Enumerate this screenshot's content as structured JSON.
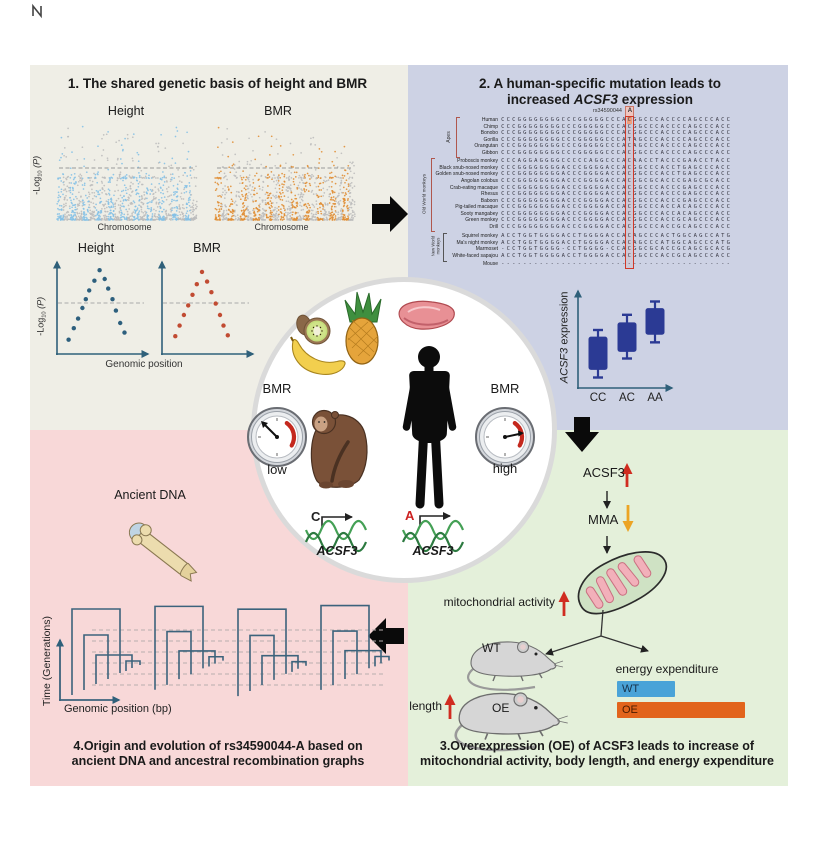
{
  "quadrant1": {
    "title": "1. The shared genetic basis of height and BMR",
    "manhattan": {
      "labels": [
        "Height",
        "BMR"
      ],
      "accent_colors": [
        "#85c1e5",
        "#e08e35"
      ],
      "alt_color": "#bcbcbc",
      "xlabel": "Chromosome",
      "ylabel": {
        "pre": "-Log",
        "sub": "10",
        "post": " (P)"
      },
      "threshold_rel": 0.52,
      "chromosome_count": 22
    },
    "locus": {
      "labels": [
        "Height",
        "BMR"
      ],
      "dot_colors": [
        "#2d5f7d",
        "#c14b32"
      ],
      "xlabel": "Genomic position",
      "ylabel": {
        "pre": "-Log",
        "sub": "10",
        "post": " (P)"
      },
      "threshold_rel": 0.55,
      "points": {
        "height": [
          [
            0.1,
            0.14
          ],
          [
            0.16,
            0.27
          ],
          [
            0.21,
            0.38
          ],
          [
            0.26,
            0.5
          ],
          [
            0.3,
            0.6
          ],
          [
            0.34,
            0.7
          ],
          [
            0.4,
            0.81
          ],
          [
            0.46,
            0.93
          ],
          [
            0.52,
            0.83
          ],
          [
            0.56,
            0.72
          ],
          [
            0.61,
            0.6
          ],
          [
            0.65,
            0.47
          ],
          [
            0.7,
            0.33
          ],
          [
            0.75,
            0.22
          ]
        ],
        "bmr": [
          [
            0.12,
            0.18
          ],
          [
            0.17,
            0.3
          ],
          [
            0.22,
            0.42
          ],
          [
            0.27,
            0.53
          ],
          [
            0.32,
            0.65
          ],
          [
            0.37,
            0.77
          ],
          [
            0.43,
            0.91
          ],
          [
            0.49,
            0.8
          ],
          [
            0.54,
            0.68
          ],
          [
            0.59,
            0.55
          ],
          [
            0.64,
            0.42
          ],
          [
            0.68,
            0.3
          ],
          [
            0.73,
            0.19
          ]
        ]
      }
    }
  },
  "quadrant2": {
    "title_line1": "2. A human-specific mutation leads to",
    "title_line2": {
      "pre": "increased ",
      "gene": "ACSF3",
      "post": " expression"
    },
    "alignment": {
      "snp_label": "rs34590044",
      "snp_allele": "A",
      "snp_index": 23,
      "groups": [
        {
          "name": "Apes",
          "start": 0,
          "end": 5,
          "color": "#b0574d"
        },
        {
          "name": "Old World monkeys",
          "start": 6,
          "end": 16,
          "color": "#b0574d"
        },
        {
          "name": "New World monkeys",
          "start": 17,
          "end": 20,
          "color": "#555555"
        }
      ],
      "rows": [
        {
          "species": "Human",
          "seq": "CCCGGGGGGGGCCCGGGGGCCCACGGCCCACCCCAGCCCACC",
          "hum": true
        },
        {
          "species": "Chimp",
          "seq": "CCCGGGGGGGGCCCGGGGGCCCACGGCCCACCCCAGCCCACC"
        },
        {
          "species": "Bonobo",
          "seq": "CCCGGGGGGGGCCCGGGGGCCCACGGCCCACCCCAGCCCACC"
        },
        {
          "species": "Gorilla",
          "seq": "CCCGGGGGGGGCCCGGGGGCCCATAGCCCACCCCAGCCCACC"
        },
        {
          "species": "Orangutan",
          "seq": "CCCGGGGGGGGCCCGGGGGCCCACAGCCCACCCCAGCCCACC"
        },
        {
          "species": "Gibbon",
          "seq": "CCCGGGGGGGGCCCGGGGGCCCACGGCCCACCCCAGCCCACC"
        },
        {
          "species": "Proboscis monkey",
          "seq": "CCCAGGAGGGGCCCCCAGGCCCACAACCTACCCGAACCTACC",
          "gap": 2
        },
        {
          "species": "Black snub-nosed monkey",
          "seq": "CCCGGGGGGGGACCCGGGGACCACGGCCCACCTGAGCCCACC"
        },
        {
          "species": "Golden snub-nosed monkey",
          "seq": "CCCGGGGGGGGACCCGGGGACCACGGCCCACCTGAGCCCACC"
        },
        {
          "species": "Angolan colobus",
          "seq": "CCCGGGGGGGGACCCGGGGACCACGGCGCACCCGAGCGCACC"
        },
        {
          "species": "Crab-eating macaque",
          "seq": "CCCGGGGGGGGACCCGGGGACCACGGCCCACCCGAGCCCACC"
        },
        {
          "species": "Rhesus",
          "seq": "CCCGGGGGGGGACCCGGGGACCACGGCCCACCCGAGCCCACC"
        },
        {
          "species": "Baboon",
          "seq": "CCCGGGGGGGGACCCGGGGACCACGGCCCACCCGAGCCCACC"
        },
        {
          "species": "Pig-tailed macaque",
          "seq": "CCCGGGGGGGGACCCGGGGACCACGGCCCACCACAGCCCACC"
        },
        {
          "species": "Sooty mangabey",
          "seq": "CCCGGGGGGGGACCCGGGGACCACGGCCCACCACAGCCCACC"
        },
        {
          "species": "Green monkey",
          "seq": "CCCGGGGGGGGACCCGGGGACCACGGCCCACCGCAGCCCACC"
        },
        {
          "species": "Drill",
          "seq": "CCCGGGGGGGGACCCGGGGACCACGGCCCACCGCAGCCCACC"
        },
        {
          "species": "Squirrel monkey",
          "seq": "ACCTGGTGGGGACCTGGGGACCACAGCCCACTGGCAGCCATG",
          "gap": 3
        },
        {
          "species": "Ma's night monkey",
          "seq": "ACCTGGTGGGGACCTGGGGACCACAGCCCATGGCAGCCCATG"
        },
        {
          "species": "Marmoset",
          "seq": "-CCTGGTGGGG-CCTGGGG-CCACGGCGCACCGCAGCGCACG"
        },
        {
          "species": "White-faced sapajou",
          "seq": "ACCTGGTGGGGACCTGGGGACCACGGCCCACCGCAGCCCACC"
        },
        {
          "species": "Mouse",
          "seq": "------------------------------------------",
          "gap": 1
        }
      ]
    },
    "boxplot": {
      "ylabel": {
        "gene": "ACSF3",
        "post": " expression"
      },
      "categories": [
        "CC",
        "AC",
        "AA"
      ],
      "boxes": [
        {
          "low": 0.1,
          "q1": 0.18,
          "q3": 0.53,
          "high": 0.6
        },
        {
          "low": 0.3,
          "q1": 0.37,
          "q3": 0.68,
          "high": 0.76
        },
        {
          "low": 0.47,
          "q1": 0.55,
          "q3": 0.83,
          "high": 0.9
        }
      ],
      "box_color": "#2b3a94"
    }
  },
  "center": {
    "bmr_left": "BMR",
    "bmr_right": "BMR",
    "low": "low",
    "high": "high",
    "allele_low": "C",
    "allele_high": "A",
    "gene_low": "ACSF3",
    "gene_high": "ACSF3"
  },
  "quadrant3": {
    "gene": "ACSF3",
    "metabolite": "MMA",
    "mito_label": "mitochondrial activity",
    "length_label": "length",
    "mice": [
      {
        "label": "WT"
      },
      {
        "label": "OE"
      }
    ],
    "energy": {
      "title": "energy expenditure",
      "bars": [
        {
          "label": "WT",
          "rel": 0.45,
          "color": "#4aa3d8",
          "label_color": "#16324a"
        },
        {
          "label": "OE",
          "rel": 1.0,
          "color": "#e2641c",
          "label_color": "#4a1c00"
        }
      ],
      "max_width": 128
    },
    "caption_line1": "3.Overexpression (OE) of ACSF3 leads to increase of",
    "caption_line2": "mitochondrial activity, body length, and energy expenditure"
  },
  "quadrant4": {
    "ancient_dna_label": "Ancient DNA",
    "arg": {
      "ylabel": "Time (Generations)",
      "xlabel": "Genomic position (bp)",
      "tree_count": 4
    },
    "caption_line1": "4.Origin and evolution of rs34590044-A based on",
    "caption_line2": "ancient DNA and ancestral recombination graphs"
  },
  "palette": {
    "q1_bg": "#efeee6",
    "q2_bg": "#cdd2e4",
    "q3_bg": "#e4f0da",
    "q4_bg": "#f8d8d8",
    "arrow_black": "#0a0a0a",
    "arrow_red": "#d02c20",
    "arrow_orange": "#eca424",
    "axis": "#2f607a",
    "snp_box": "#d03828",
    "snp_highlight": "#f2a482"
  }
}
